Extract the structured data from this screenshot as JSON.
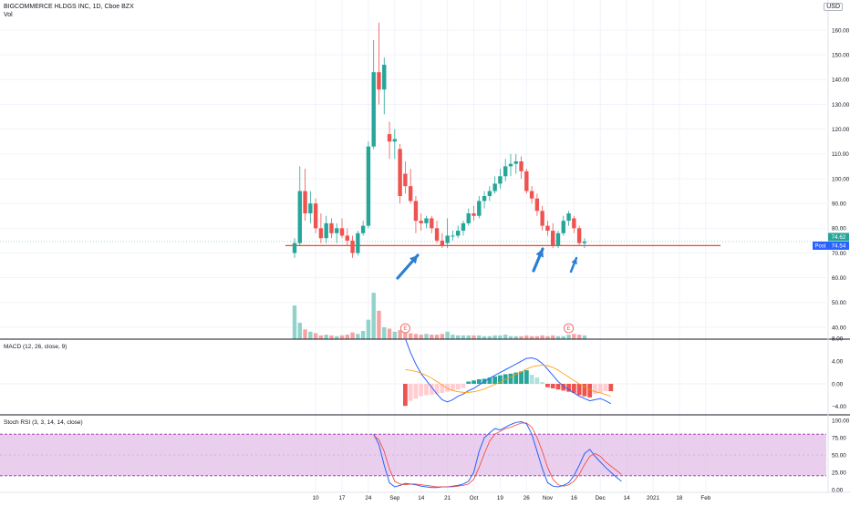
{
  "header": {
    "title": "BIGCOMMERCE HLDGS INC, 1D, Cboe BZX",
    "volume_label": "Vol",
    "currency": "USD"
  },
  "colors": {
    "up": "#26a69a",
    "down": "#ef5350",
    "up_volume": "#8fd3cb",
    "down_volume": "#f5a3a1",
    "support_line": "#f44336",
    "arrow": "#2a7fd4",
    "macd_line": "#2962ff",
    "signal_line": "#ff9800",
    "stoch_k": "#2962ff",
    "stoch_d": "#f44336",
    "stoch_band": "#e1bee7",
    "pane_divider": "#131722",
    "price_line": "#26a69a",
    "post_tag": "#2962ff"
  },
  "chart_data": [
    {
      "type": "candlestick",
      "title": "BIGCOMMERCE HLDGS INC, 1D, Cboe BZX",
      "ylim": [
        35,
        167
      ],
      "yticks": [
        40,
        50,
        60,
        70,
        80,
        90,
        100,
        110,
        120,
        130,
        140,
        150,
        160
      ],
      "ytick_labels": [
        "40.00",
        "50.00",
        "60.00",
        "70.00",
        "80.00",
        "90.00",
        "100.00",
        "110.00",
        "120.00",
        "130.00",
        "140.00",
        "150.00",
        "160.00"
      ],
      "xtick_labels": [
        "10",
        "17",
        "24",
        "Sep",
        "14",
        "21",
        "Oct",
        "19",
        "26",
        "Nov",
        "16",
        "Dec",
        "14",
        "2021",
        "18",
        "Feb"
      ],
      "xtick_index": [
        4,
        9,
        14,
        19,
        24,
        29,
        34,
        39,
        44,
        48,
        53,
        58,
        63,
        68,
        73,
        78
      ],
      "candles": [
        {
          "o": 70,
          "h": 76,
          "l": 68,
          "c": 74
        },
        {
          "o": 74,
          "h": 105,
          "l": 73,
          "c": 95
        },
        {
          "o": 95,
          "h": 104,
          "l": 83,
          "c": 86
        },
        {
          "o": 86,
          "h": 95,
          "l": 82,
          "c": 90
        },
        {
          "o": 90,
          "h": 92,
          "l": 78,
          "c": 80
        },
        {
          "o": 80,
          "h": 86,
          "l": 74,
          "c": 76
        },
        {
          "o": 76,
          "h": 85,
          "l": 74,
          "c": 82
        },
        {
          "o": 82,
          "h": 84,
          "l": 76,
          "c": 78
        },
        {
          "o": 78,
          "h": 82,
          "l": 74,
          "c": 80
        },
        {
          "o": 80,
          "h": 84,
          "l": 76,
          "c": 77
        },
        {
          "o": 77,
          "h": 80,
          "l": 73,
          "c": 75
        },
        {
          "o": 75,
          "h": 77,
          "l": 68,
          "c": 70
        },
        {
          "o": 70,
          "h": 79,
          "l": 69,
          "c": 78
        },
        {
          "o": 78,
          "h": 83,
          "l": 77,
          "c": 81
        },
        {
          "o": 81,
          "h": 115,
          "l": 80,
          "c": 113
        },
        {
          "o": 113,
          "h": 156,
          "l": 112,
          "c": 143
        },
        {
          "o": 143,
          "h": 163,
          "l": 130,
          "c": 136
        },
        {
          "o": 136,
          "h": 149,
          "l": 126,
          "c": 146
        },
        {
          "o": 118,
          "h": 123,
          "l": 108,
          "c": 115
        },
        {
          "o": 115,
          "h": 120,
          "l": 108,
          "c": 116
        },
        {
          "o": 112,
          "h": 114,
          "l": 90,
          "c": 93
        },
        {
          "o": 102,
          "h": 107,
          "l": 94,
          "c": 97
        },
        {
          "o": 97,
          "h": 104,
          "l": 90,
          "c": 91
        },
        {
          "o": 91,
          "h": 93,
          "l": 78,
          "c": 83
        },
        {
          "o": 83,
          "h": 86,
          "l": 79,
          "c": 82
        },
        {
          "o": 82,
          "h": 85,
          "l": 80,
          "c": 84
        },
        {
          "o": 84,
          "h": 85,
          "l": 78,
          "c": 80
        },
        {
          "o": 80,
          "h": 83,
          "l": 74,
          "c": 75
        },
        {
          "o": 75,
          "h": 78,
          "l": 72,
          "c": 73
        },
        {
          "o": 74,
          "h": 84,
          "l": 72,
          "c": 77
        },
        {
          "o": 77,
          "h": 79,
          "l": 75,
          "c": 77
        },
        {
          "o": 77,
          "h": 81,
          "l": 76,
          "c": 79
        },
        {
          "o": 79,
          "h": 83,
          "l": 77,
          "c": 82
        },
        {
          "o": 82,
          "h": 88,
          "l": 81,
          "c": 86
        },
        {
          "o": 86,
          "h": 89,
          "l": 83,
          "c": 85
        },
        {
          "o": 85,
          "h": 93,
          "l": 84,
          "c": 91
        },
        {
          "o": 91,
          "h": 95,
          "l": 88,
          "c": 93
        },
        {
          "o": 93,
          "h": 97,
          "l": 91,
          "c": 95
        },
        {
          "o": 95,
          "h": 101,
          "l": 94,
          "c": 98
        },
        {
          "o": 98,
          "h": 104,
          "l": 96,
          "c": 101
        },
        {
          "o": 101,
          "h": 108,
          "l": 99,
          "c": 105
        },
        {
          "o": 105,
          "h": 110,
          "l": 101,
          "c": 106
        },
        {
          "o": 106,
          "h": 110,
          "l": 102,
          "c": 107
        },
        {
          "o": 107,
          "h": 109,
          "l": 100,
          "c": 103
        },
        {
          "o": 103,
          "h": 104,
          "l": 94,
          "c": 95
        },
        {
          "o": 95,
          "h": 97,
          "l": 90,
          "c": 92
        },
        {
          "o": 92,
          "h": 94,
          "l": 85,
          "c": 87
        },
        {
          "o": 87,
          "h": 89,
          "l": 79,
          "c": 81
        },
        {
          "o": 81,
          "h": 83,
          "l": 77,
          "c": 79
        },
        {
          "o": 79,
          "h": 82,
          "l": 72,
          "c": 73
        },
        {
          "o": 73,
          "h": 79,
          "l": 72,
          "c": 78
        },
        {
          "o": 78,
          "h": 85,
          "l": 77,
          "c": 83
        },
        {
          "o": 83,
          "h": 87,
          "l": 81,
          "c": 86
        },
        {
          "o": 84,
          "h": 85,
          "l": 78,
          "c": 80
        },
        {
          "o": 80,
          "h": 81,
          "l": 73,
          "c": 74
        },
        {
          "o": 74,
          "h": 76,
          "l": 72,
          "c": 74.62
        }
      ],
      "volume": [
        4.5,
        2.2,
        1.3,
        1.0,
        0.8,
        0.5,
        0.6,
        0.5,
        0.4,
        0.5,
        0.6,
        0.9,
        0.7,
        1.1,
        2.6,
        6.2,
        3.8,
        1.6,
        1.4,
        1.0,
        1.2,
        0.9,
        0.8,
        0.7,
        0.6,
        0.7,
        0.6,
        0.6,
        0.7,
        1.0,
        0.6,
        0.5,
        0.5,
        0.5,
        0.5,
        0.5,
        0.4,
        0.4,
        0.5,
        0.5,
        0.6,
        0.4,
        0.4,
        0.4,
        0.5,
        0.4,
        0.4,
        0.5,
        0.4,
        0.5,
        0.4,
        0.4,
        0.6,
        0.7,
        0.6,
        0.5
      ],
      "earnings_markers": [
        {
          "index": 21,
          "label": "E"
        },
        {
          "index": 52,
          "label": "E"
        }
      ],
      "support_level": 73,
      "last_price": "74.62",
      "post_price": "74.54",
      "post_label": "Post"
    },
    {
      "type": "line",
      "title": "MACD (12, 26, close, 9)",
      "ylim": [
        -5,
        9
      ],
      "yticks": [
        8,
        4,
        0,
        -4
      ],
      "ytick_labels": [
        "8.00",
        "4.00",
        "0.00",
        "−4.00"
      ],
      "start_index": 21,
      "series": [
        {
          "name": "MACD",
          "values": [
            8.0,
            5.5,
            3.5,
            1.8,
            0.6,
            -0.6,
            -1.8,
            -2.8,
            -3.2,
            -2.8,
            -2.2,
            -1.8,
            -1.2,
            -0.8,
            -0.2,
            0.4,
            1.0,
            1.5,
            2.0,
            2.5,
            3.0,
            3.5,
            4.0,
            4.5,
            4.6,
            4.3,
            3.6,
            2.6,
            1.5,
            0.4,
            -0.4,
            -1.0,
            -1.6,
            -2.2,
            -2.6,
            -3.0,
            -2.8,
            -2.6,
            -3.0,
            -3.5
          ]
        },
        {
          "name": "Signal",
          "values": [
            2.5,
            2.4,
            2.2,
            1.9,
            1.5,
            1.0,
            0.4,
            -0.2,
            -0.8,
            -1.2,
            -1.4,
            -1.5,
            -1.5,
            -1.4,
            -1.2,
            -0.9,
            -0.5,
            -0.1,
            0.3,
            0.8,
            1.2,
            1.7,
            2.1,
            2.6,
            3.0,
            3.2,
            3.3,
            3.2,
            2.9,
            2.4,
            1.8,
            1.2,
            0.6,
            0.0,
            -0.5,
            -1.0,
            -1.4,
            -1.6,
            -1.9,
            -2.2
          ]
        },
        {
          "name": "Histogram",
          "values": [
            -3.9,
            -3.0,
            -2.6,
            -2.2,
            -2.0,
            -1.9,
            -1.8,
            -1.6,
            -1.4,
            -1.2,
            -1.0,
            -0.7,
            0.4,
            0.6,
            0.8,
            0.9,
            1.1,
            1.3,
            1.5,
            1.7,
            1.8,
            2.0,
            2.2,
            2.4,
            1.6,
            1.1,
            0.3,
            -0.6,
            -0.8,
            -1.0,
            -1.2,
            -1.4,
            -1.6,
            -2.0,
            -2.2,
            -2.4,
            -1.8,
            -1.6,
            -1.3,
            -1.3
          ]
        }
      ]
    },
    {
      "type": "line",
      "title": "Stoch RSI (3, 3, 14, 14, close)",
      "ylim": [
        -5,
        105
      ],
      "yticks": [
        100,
        75,
        50,
        25,
        0
      ],
      "ytick_labels": [
        "100.00",
        "75.00",
        "50.00",
        "25.00",
        "0.00"
      ],
      "band": [
        20,
        80
      ],
      "start_index": 15,
      "series": [
        {
          "name": "%K",
          "values": [
            80,
            65,
            35,
            10,
            4,
            6,
            9,
            8,
            7,
            5,
            4,
            3,
            3,
            4,
            4,
            5,
            6,
            8,
            12,
            25,
            55,
            75,
            82,
            88,
            86,
            90,
            94,
            97,
            98,
            95,
            80,
            55,
            30,
            10,
            5,
            4,
            6,
            10,
            20,
            35,
            52,
            58,
            48,
            40,
            32,
            25,
            18,
            12
          ]
        },
        {
          "name": "%D",
          "values": [
            78,
            72,
            55,
            30,
            12,
            8,
            7,
            8,
            8,
            7,
            6,
            5,
            4,
            4,
            4,
            4,
            5,
            6,
            8,
            15,
            32,
            52,
            70,
            80,
            84,
            88,
            90,
            93,
            96,
            96,
            90,
            75,
            55,
            32,
            15,
            7,
            5,
            7,
            12,
            22,
            36,
            48,
            52,
            48,
            40,
            34,
            28,
            22
          ]
        }
      ]
    }
  ]
}
